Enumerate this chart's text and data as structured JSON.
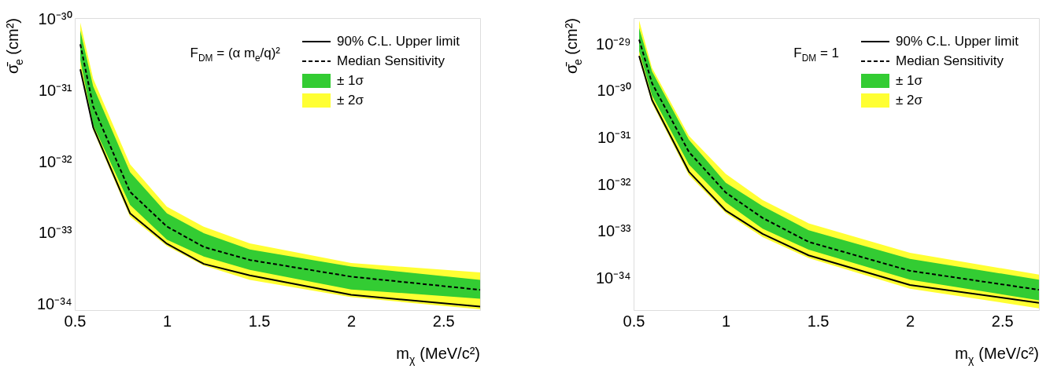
{
  "chart_data": [
    {
      "type": "line",
      "xlabel": "m$_{χ}$ (MeV/c²)",
      "ylabel": "σ̄$_{e}$ (cm²)",
      "log": "y",
      "grid": false,
      "legend": "top right",
      "annotations": [
        "F$_{DM}$ = (α m$_{e}$/q)²"
      ],
      "x": [
        0.53,
        0.6,
        0.8,
        1.0,
        1.2,
        1.45,
        2.0,
        2.7
      ],
      "xlim": [
        0.5,
        2.7
      ],
      "xticks": [
        0.5,
        1,
        1.5,
        2,
        2.5
      ],
      "ylim": [
        8.3e-35,
        1.05e-30
      ],
      "yticks": [
        {
          "value": 1e-34,
          "label": "10⁻³⁴"
        },
        {
          "value": 1e-33,
          "label": "10⁻³³"
        },
        {
          "value": 1e-32,
          "label": "10⁻³²"
        },
        {
          "value": 1e-31,
          "label": "10⁻³¹"
        },
        {
          "value": 1e-30,
          "label": "10⁻³⁰"
        }
      ],
      "series": [
        {
          "name": "± 2σ",
          "type": "area",
          "color": "#ffff33",
          "values": [
            null,
            null,
            null,
            null,
            null,
            null,
            null,
            null
          ],
          "lower": [
            2.1e-31,
            2.8e-32,
            1.7e-33,
            6.6e-34,
            3.5e-34,
            2.2e-34,
            1.26e-34,
            8.5e-35
          ],
          "upper": [
            9.1e-31,
            1.48e-31,
            9.3e-33,
            2.35e-33,
            1.23e-33,
            7.2e-34,
            3.8e-34,
            2.8e-34
          ]
        },
        {
          "name": "± 1σ",
          "type": "area",
          "color": "#33cc33",
          "values": [
            null,
            null,
            null,
            null,
            null,
            null,
            null,
            null
          ],
          "lower": [
            2.7e-31,
            3.3e-32,
            2.5e-33,
            8.1e-34,
            4.7e-34,
            3.05e-34,
            1.62e-34,
            1.2e-34
          ],
          "upper": [
            7e-31,
            1.15e-31,
            7.2e-33,
            1.9e-33,
            1e-33,
            5.9e-34,
            3.4e-34,
            2.2e-34
          ]
        },
        {
          "name": "90% C.L. Upper limit",
          "type": "line",
          "line_style": "solid",
          "color": "#000000",
          "values": [
            2e-31,
            3.05e-32,
            1.9e-33,
            7.1e-34,
            3.7e-34,
            2.55e-34,
            1.36e-34,
            9.3e-35
          ]
        },
        {
          "name": "Median Sensitivity",
          "type": "line",
          "line_style": "dashed",
          "color": "#000000",
          "values": [
            4.5e-31,
            6e-32,
            3.8e-33,
            1.24e-33,
            6.4e-34,
            4.2e-34,
            2.45e-34,
            1.6e-34
          ]
        }
      ]
    },
    {
      "type": "line",
      "xlabel": "m$_{χ}$ (MeV/c²)",
      "ylabel": "σ̄$_{e}$ (cm²)",
      "log": "y",
      "grid": false,
      "legend": "top right",
      "annotations": [
        "F$_{DM}$ = 1"
      ],
      "x": [
        0.53,
        0.6,
        0.8,
        1.0,
        1.2,
        1.45,
        2.0,
        2.7
      ],
      "xlim": [
        0.5,
        2.7
      ],
      "xticks": [
        0.5,
        1,
        1.5,
        2,
        2.5
      ],
      "ylim": [
        2.1e-35,
        3.6e-29
      ],
      "yticks": [
        {
          "value": 1e-34,
          "label": "10⁻³⁴"
        },
        {
          "value": 1e-33,
          "label": "10⁻³³"
        },
        {
          "value": 1e-32,
          "label": "10⁻³²"
        },
        {
          "value": 1e-31,
          "label": "10⁻³¹"
        },
        {
          "value": 1e-30,
          "label": "10⁻³⁰"
        },
        {
          "value": 1e-29,
          "label": "10⁻²⁹"
        }
      ],
      "series": [
        {
          "name": "± 2σ",
          "type": "area",
          "color": "#ffff33",
          "values": [
            null,
            null,
            null,
            null,
            null,
            null,
            null,
            null
          ],
          "lower": [
            4.9e-30,
            5.5e-31,
            1.6e-32,
            2.5e-33,
            7.6e-34,
            2.7e-34,
            6e-35,
            2.3e-35
          ],
          "upper": [
            3.2e-29,
            3.1e-30,
            1.1e-31,
            1.7e-32,
            4.7e-33,
            1.5e-33,
            3.5e-34,
            1.2e-34
          ]
        },
        {
          "name": "± 1σ",
          "type": "area",
          "color": "#33cc33",
          "values": [
            null,
            null,
            null,
            null,
            null,
            null,
            null,
            null
          ],
          "lower": [
            7.1e-30,
            8e-31,
            2.7e-32,
            4.2e-33,
            1.15e-33,
            4.1e-34,
            9.4e-35,
            3.4e-35
          ],
          "upper": [
            2.2e-29,
            2.6e-30,
            9.1e-32,
            1.1e-32,
            3.5e-33,
            1.07e-33,
            2.6e-34,
            9.4e-35
          ]
        },
        {
          "name": "90% C.L. Upper limit",
          "type": "line",
          "line_style": "solid",
          "color": "#000000",
          "values": [
            5.6e-30,
            6.4e-31,
            1.9e-32,
            2.8e-33,
            8.9e-34,
            3.1e-34,
            7.2e-35,
            3e-35
          ]
        },
        {
          "name": "Median Sensitivity",
          "type": "line",
          "line_style": "dashed",
          "color": "#000000",
          "values": [
            1.25e-29,
            1.46e-30,
            5e-32,
            6.8e-33,
            1.95e-33,
            6e-34,
            1.45e-34,
            5.7e-35
          ]
        }
      ]
    }
  ]
}
